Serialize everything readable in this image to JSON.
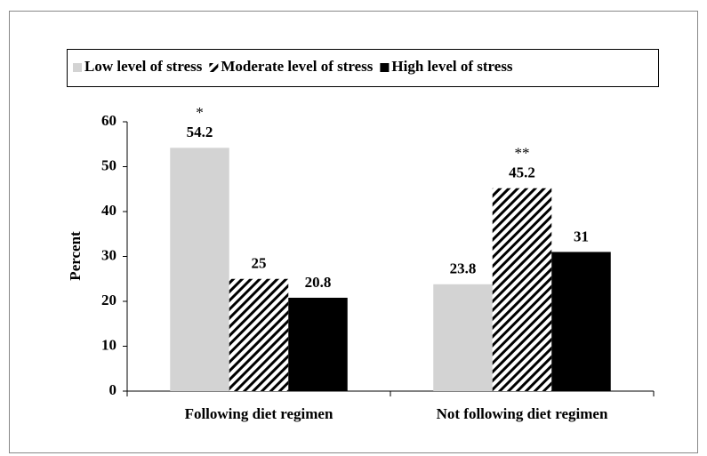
{
  "chart_data": {
    "type": "bar",
    "categories": [
      "Following diet regimen",
      "Not following diet regimen"
    ],
    "series": [
      {
        "name": "Low level of stress",
        "color": "#d3d3d3",
        "values": [
          54.2,
          23.8
        ]
      },
      {
        "name": "Moderate level of stress",
        "color": "#000000",
        "pattern": "hatch",
        "values": [
          25,
          45.2
        ]
      },
      {
        "name": "High level of stress",
        "color": "#000000",
        "values": [
          20.8,
          31
        ]
      }
    ],
    "y_label": "Percent",
    "ylim": [
      0,
      60
    ],
    "yticks": [
      0,
      10,
      20,
      30,
      40,
      50,
      60
    ],
    "legend": "top",
    "annotations": [
      {
        "text": "*",
        "series": 0,
        "category": 0
      },
      {
        "text": "**",
        "series": 1,
        "category": 1
      }
    ]
  }
}
